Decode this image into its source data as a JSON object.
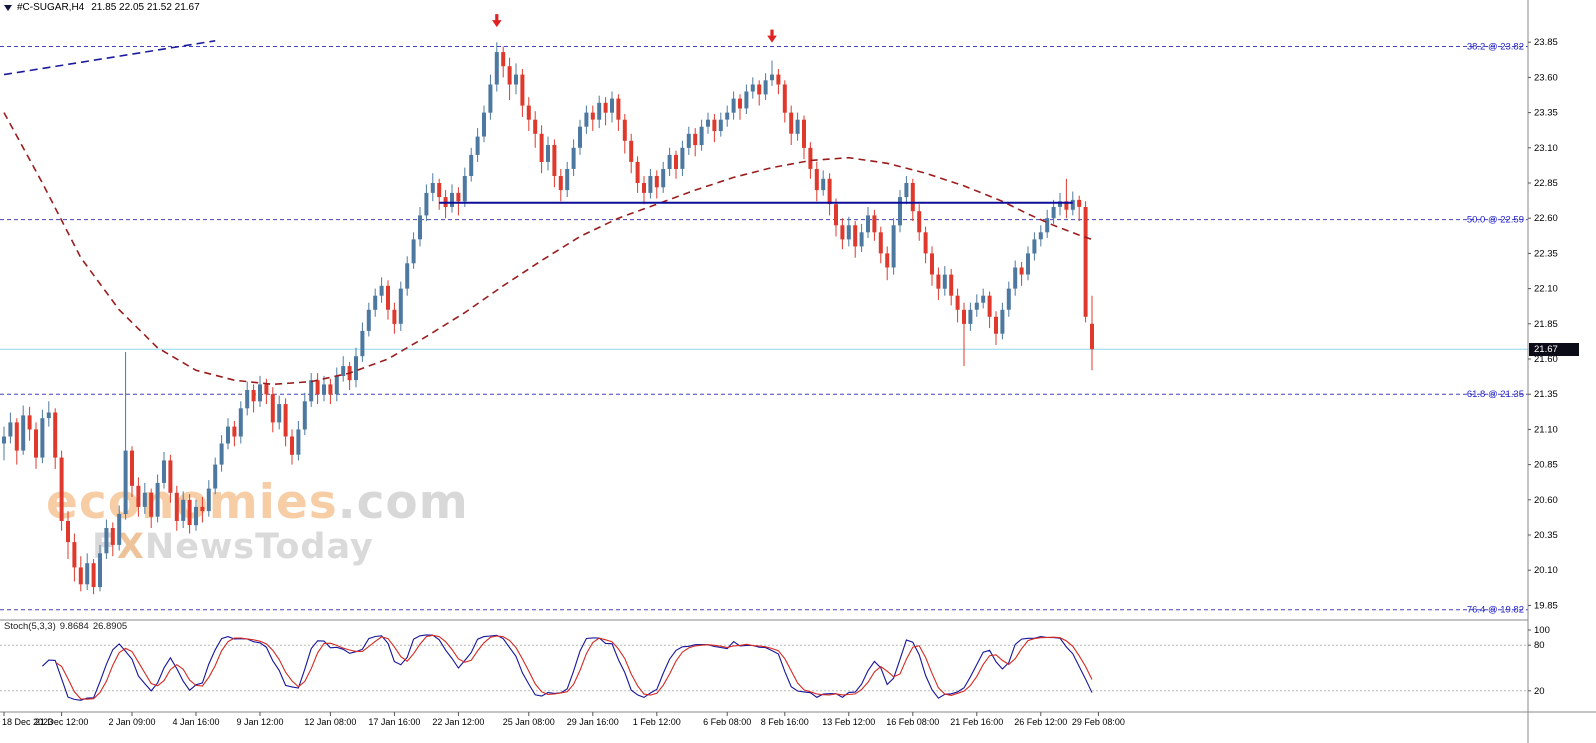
{
  "header": {
    "symbol": "#C-SUGAR,H4",
    "quote": "21.85 22.05 21.52 21.67"
  },
  "watermark": {
    "brand": "economies",
    "suffix": ".com",
    "f": "F",
    "x": "X",
    "rest": "NewsToday"
  },
  "price_axis": {
    "current": "21.67",
    "ticks": [
      "23.85",
      "23.60",
      "23.35",
      "23.10",
      "22.85",
      "22.60",
      "22.35",
      "22.10",
      "21.85",
      "21.60",
      "21.35",
      "21.10",
      "20.85",
      "20.60",
      "20.35",
      "20.10",
      "19.85"
    ]
  },
  "time_axis": {
    "labels": [
      {
        "text": "18 Dec 2023",
        "idx": 0
      },
      {
        "text": "21 Dec 12:00",
        "idx": 9
      },
      {
        "text": "2 Jan 09:00",
        "idx": 20
      },
      {
        "text": "4 Jan 16:00",
        "idx": 30
      },
      {
        "text": "9 Jan 12:00",
        "idx": 40
      },
      {
        "text": "12 Jan 08:00",
        "idx": 51
      },
      {
        "text": "17 Jan 16:00",
        "idx": 61
      },
      {
        "text": "22 Jan 12:00",
        "idx": 71
      },
      {
        "text": "25 Jan 08:00",
        "idx": 82
      },
      {
        "text": "29 Jan 16:00",
        "idx": 92
      },
      {
        "text": "1 Feb 12:00",
        "idx": 102
      },
      {
        "text": "6 Feb 08:00",
        "idx": 113
      },
      {
        "text": "8 Feb 16:00",
        "idx": 122
      },
      {
        "text": "13 Feb 12:00",
        "idx": 132
      },
      {
        "text": "16 Feb 08:00",
        "idx": 142
      },
      {
        "text": "21 Feb 16:00",
        "idx": 152
      },
      {
        "text": "26 Feb 12:00",
        "idx": 162
      },
      {
        "text": "29 Feb 08:00",
        "idx": 171
      }
    ]
  },
  "fib_levels": [
    {
      "label": "38.2 @ 23.82",
      "price": 23.82
    },
    {
      "label": "50.0 @ 22.59",
      "price": 22.59
    },
    {
      "label": "61.8 @ 21.35",
      "price": 21.35
    },
    {
      "label": "76.4 @ 19.82",
      "price": 19.82
    }
  ],
  "indicator": {
    "label": "Stoch(5,3,3)",
    "main_value": "9.8684",
    "signal_value": "26.8905",
    "levels": [
      "100",
      "80",
      "20"
    ],
    "params": {
      "k": 5,
      "d": 3,
      "slowing": 3
    }
  },
  "colors": {
    "up": "#4d79a1",
    "down": "#df382d",
    "ma": "#9b1c1c",
    "trend": "#1b1b9e",
    "hline": "#0d0d99",
    "fib": "#4444bb",
    "fib_text": "#2222cc",
    "price_line": "#8fd7ee",
    "arrow": "#e02222",
    "stoch_main": "#16169b",
    "stoch_signal": "#d42a22",
    "badge_bg": "#0c0c18",
    "axis": "#888888"
  },
  "chart_data": {
    "type": "candlestick",
    "symbol": "#C-SUGAR",
    "timeframe": "H4",
    "last_quote": {
      "open": 21.85,
      "high": 22.05,
      "low": 21.52,
      "close": 21.67
    },
    "ylim": [
      19.85,
      23.85
    ],
    "current_price": 21.67,
    "candles": [
      [
        21.0,
        21.12,
        20.88,
        21.05
      ],
      [
        21.05,
        21.22,
        21.0,
        21.15
      ],
      [
        21.15,
        21.18,
        20.85,
        20.95
      ],
      [
        20.95,
        21.27,
        20.92,
        21.2
      ],
      [
        21.2,
        21.26,
        21.02,
        21.1
      ],
      [
        21.1,
        21.15,
        20.82,
        20.9
      ],
      [
        20.9,
        21.24,
        20.86,
        21.18
      ],
      [
        21.18,
        21.3,
        21.12,
        21.22
      ],
      [
        21.22,
        21.25,
        20.82,
        20.9
      ],
      [
        20.9,
        20.95,
        20.38,
        20.45
      ],
      [
        20.45,
        20.52,
        20.18,
        20.3
      ],
      [
        20.3,
        20.36,
        20.02,
        20.12
      ],
      [
        20.12,
        20.2,
        19.95,
        20.0
      ],
      [
        20.0,
        20.22,
        19.96,
        20.15
      ],
      [
        20.15,
        20.18,
        19.93,
        19.98
      ],
      [
        19.98,
        20.28,
        19.95,
        20.22
      ],
      [
        20.22,
        20.46,
        20.18,
        20.4
      ],
      [
        20.4,
        20.44,
        20.2,
        20.28
      ],
      [
        20.28,
        20.56,
        20.24,
        20.5
      ],
      [
        20.5,
        21.65,
        20.46,
        20.95
      ],
      [
        20.95,
        20.98,
        20.62,
        20.7
      ],
      [
        20.7,
        20.76,
        20.48,
        20.55
      ],
      [
        20.55,
        20.72,
        20.5,
        20.65
      ],
      [
        20.65,
        20.68,
        20.4,
        20.48
      ],
      [
        20.48,
        20.78,
        20.44,
        20.72
      ],
      [
        20.72,
        20.94,
        20.68,
        20.88
      ],
      [
        20.88,
        20.92,
        20.58,
        20.65
      ],
      [
        20.65,
        20.7,
        20.38,
        20.45
      ],
      [
        20.45,
        20.66,
        20.4,
        20.6
      ],
      [
        20.6,
        20.64,
        20.36,
        20.42
      ],
      [
        20.42,
        20.6,
        20.38,
        20.55
      ],
      [
        20.55,
        20.62,
        20.44,
        20.52
      ],
      [
        20.52,
        20.74,
        20.48,
        20.68
      ],
      [
        20.68,
        20.9,
        20.64,
        20.85
      ],
      [
        20.85,
        21.06,
        20.8,
        21.0
      ],
      [
        21.0,
        21.18,
        20.96,
        21.12
      ],
      [
        21.12,
        21.16,
        20.98,
        21.05
      ],
      [
        21.05,
        21.3,
        21.0,
        21.25
      ],
      [
        21.25,
        21.44,
        21.2,
        21.38
      ],
      [
        21.38,
        21.42,
        21.22,
        21.3
      ],
      [
        21.3,
        21.48,
        21.26,
        21.42
      ],
      [
        21.42,
        21.46,
        21.28,
        21.35
      ],
      [
        21.35,
        21.4,
        21.08,
        21.15
      ],
      [
        21.15,
        21.34,
        21.1,
        21.28
      ],
      [
        21.28,
        21.32,
        20.98,
        21.05
      ],
      [
        21.05,
        21.1,
        20.85,
        20.92
      ],
      [
        20.92,
        21.16,
        20.88,
        21.1
      ],
      [
        21.1,
        21.36,
        21.06,
        21.3
      ],
      [
        21.3,
        21.5,
        21.26,
        21.45
      ],
      [
        21.45,
        21.5,
        21.28,
        21.35
      ],
      [
        21.35,
        21.48,
        21.3,
        21.42
      ],
      [
        21.42,
        21.46,
        21.28,
        21.35
      ],
      [
        21.35,
        21.54,
        21.3,
        21.48
      ],
      [
        21.48,
        21.62,
        21.44,
        21.55
      ],
      [
        21.55,
        21.58,
        21.38,
        21.45
      ],
      [
        21.45,
        21.68,
        21.4,
        21.62
      ],
      [
        21.62,
        21.86,
        21.58,
        21.8
      ],
      [
        21.8,
        22.0,
        21.76,
        21.95
      ],
      [
        21.95,
        22.1,
        21.9,
        22.05
      ],
      [
        22.05,
        22.18,
        22.0,
        22.12
      ],
      [
        22.12,
        22.16,
        21.88,
        21.95
      ],
      [
        21.95,
        22.0,
        21.78,
        21.85
      ],
      [
        21.85,
        22.15,
        21.8,
        22.1
      ],
      [
        22.1,
        22.33,
        22.05,
        22.28
      ],
      [
        22.28,
        22.5,
        22.24,
        22.45
      ],
      [
        22.45,
        22.68,
        22.4,
        22.62
      ],
      [
        22.62,
        22.84,
        22.58,
        22.78
      ],
      [
        22.78,
        22.92,
        22.72,
        22.85
      ],
      [
        22.85,
        22.88,
        22.66,
        22.75
      ],
      [
        22.75,
        22.8,
        22.6,
        22.68
      ],
      [
        22.68,
        22.84,
        22.64,
        22.78
      ],
      [
        22.78,
        22.82,
        22.62,
        22.72
      ],
      [
        22.72,
        22.96,
        22.68,
        22.9
      ],
      [
        22.9,
        23.1,
        22.86,
        23.05
      ],
      [
        23.05,
        23.24,
        23.0,
        23.18
      ],
      [
        23.18,
        23.4,
        23.14,
        23.35
      ],
      [
        23.35,
        23.62,
        23.3,
        23.55
      ],
      [
        23.55,
        23.85,
        23.5,
        23.78
      ],
      [
        23.78,
        23.82,
        23.6,
        23.68
      ],
      [
        23.68,
        23.74,
        23.44,
        23.55
      ],
      [
        23.55,
        23.7,
        23.48,
        23.62
      ],
      [
        23.62,
        23.66,
        23.32,
        23.4
      ],
      [
        23.4,
        23.46,
        23.22,
        23.3
      ],
      [
        23.3,
        23.36,
        23.1,
        23.2
      ],
      [
        23.2,
        23.26,
        22.92,
        23.0
      ],
      [
        23.0,
        23.18,
        22.94,
        23.12
      ],
      [
        23.12,
        23.16,
        22.82,
        22.9
      ],
      [
        22.9,
        22.95,
        22.72,
        22.8
      ],
      [
        22.8,
        23.0,
        22.75,
        22.95
      ],
      [
        22.95,
        23.16,
        22.9,
        23.1
      ],
      [
        23.1,
        23.3,
        23.05,
        23.25
      ],
      [
        23.25,
        23.4,
        23.2,
        23.35
      ],
      [
        23.35,
        23.4,
        23.22,
        23.3
      ],
      [
        23.3,
        23.47,
        23.24,
        23.42
      ],
      [
        23.42,
        23.46,
        23.26,
        23.35
      ],
      [
        23.35,
        23.5,
        23.28,
        23.45
      ],
      [
        23.45,
        23.48,
        23.22,
        23.3
      ],
      [
        23.3,
        23.34,
        23.06,
        23.15
      ],
      [
        23.15,
        23.2,
        22.92,
        23.0
      ],
      [
        23.0,
        23.04,
        22.78,
        22.85
      ],
      [
        22.85,
        22.9,
        22.7,
        22.78
      ],
      [
        22.78,
        22.95,
        22.74,
        22.9
      ],
      [
        22.9,
        22.94,
        22.74,
        22.82
      ],
      [
        22.82,
        23.0,
        22.78,
        22.95
      ],
      [
        22.95,
        23.1,
        22.9,
        23.05
      ],
      [
        23.05,
        23.08,
        22.88,
        22.95
      ],
      [
        22.95,
        23.15,
        22.9,
        23.1
      ],
      [
        23.1,
        23.25,
        23.05,
        23.2
      ],
      [
        23.2,
        23.24,
        23.04,
        23.12
      ],
      [
        23.12,
        23.3,
        23.08,
        23.25
      ],
      [
        23.25,
        23.35,
        23.2,
        23.3
      ],
      [
        23.3,
        23.34,
        23.14,
        23.22
      ],
      [
        23.22,
        23.35,
        23.18,
        23.3
      ],
      [
        23.3,
        23.4,
        23.25,
        23.35
      ],
      [
        23.35,
        23.5,
        23.3,
        23.45
      ],
      [
        23.45,
        23.48,
        23.3,
        23.38
      ],
      [
        23.38,
        23.55,
        23.34,
        23.5
      ],
      [
        23.5,
        23.6,
        23.45,
        23.55
      ],
      [
        23.55,
        23.58,
        23.4,
        23.48
      ],
      [
        23.48,
        23.63,
        23.44,
        23.58
      ],
      [
        23.58,
        23.72,
        23.54,
        23.62
      ],
      [
        23.62,
        23.66,
        23.48,
        23.55
      ],
      [
        23.55,
        23.58,
        23.28,
        23.35
      ],
      [
        23.35,
        23.4,
        23.12,
        23.2
      ],
      [
        23.2,
        23.35,
        23.15,
        23.3
      ],
      [
        23.3,
        23.33,
        23.02,
        23.1
      ],
      [
        23.1,
        23.14,
        22.88,
        22.95
      ],
      [
        22.95,
        23.0,
        22.72,
        22.8
      ],
      [
        22.8,
        22.94,
        22.76,
        22.88
      ],
      [
        22.88,
        22.92,
        22.62,
        22.7
      ],
      [
        22.7,
        22.74,
        22.47,
        22.55
      ],
      [
        22.55,
        22.6,
        22.38,
        22.45
      ],
      [
        22.45,
        22.61,
        22.4,
        22.55
      ],
      [
        22.55,
        22.58,
        22.32,
        22.4
      ],
      [
        22.4,
        22.56,
        22.36,
        22.5
      ],
      [
        22.5,
        22.68,
        22.46,
        22.62
      ],
      [
        22.62,
        22.66,
        22.44,
        22.5
      ],
      [
        22.5,
        22.54,
        22.28,
        22.35
      ],
      [
        22.35,
        22.4,
        22.16,
        22.25
      ],
      [
        22.25,
        22.6,
        22.2,
        22.55
      ],
      [
        22.55,
        22.8,
        22.5,
        22.75
      ],
      [
        22.75,
        22.9,
        22.7,
        22.85
      ],
      [
        22.85,
        22.88,
        22.58,
        22.65
      ],
      [
        22.65,
        22.7,
        22.44,
        22.5
      ],
      [
        22.5,
        22.54,
        22.28,
        22.35
      ],
      [
        22.35,
        22.4,
        22.12,
        22.2
      ],
      [
        22.2,
        22.25,
        22.02,
        22.1
      ],
      [
        22.1,
        22.26,
        22.05,
        22.2
      ],
      [
        22.2,
        22.24,
        21.98,
        22.05
      ],
      [
        22.05,
        22.1,
        21.86,
        21.95
      ],
      [
        21.95,
        22.0,
        21.55,
        21.85
      ],
      [
        21.85,
        22.0,
        21.8,
        21.95
      ],
      [
        21.95,
        22.06,
        21.9,
        22.0
      ],
      [
        22.0,
        22.1,
        21.96,
        22.05
      ],
      [
        22.05,
        22.08,
        21.82,
        21.9
      ],
      [
        21.9,
        21.94,
        21.7,
        21.78
      ],
      [
        21.78,
        22.0,
        21.74,
        21.95
      ],
      [
        21.95,
        22.15,
        21.9,
        22.1
      ],
      [
        22.1,
        22.3,
        22.05,
        22.25
      ],
      [
        22.25,
        22.29,
        22.12,
        22.2
      ],
      [
        22.2,
        22.4,
        22.16,
        22.35
      ],
      [
        22.35,
        22.5,
        22.3,
        22.45
      ],
      [
        22.45,
        22.55,
        22.4,
        22.5
      ],
      [
        22.5,
        22.66,
        22.46,
        22.6
      ],
      [
        22.6,
        22.73,
        22.56,
        22.68
      ],
      [
        22.68,
        22.78,
        22.62,
        22.72
      ],
      [
        22.72,
        22.88,
        22.6,
        22.66
      ],
      [
        22.66,
        22.79,
        22.62,
        22.73
      ],
      [
        22.73,
        22.76,
        22.58,
        22.68
      ],
      [
        22.68,
        22.72,
        21.86,
        21.9
      ],
      [
        21.85,
        22.05,
        21.52,
        21.67
      ]
    ],
    "ma_line": {
      "style": "dashed",
      "points": [
        [
          0,
          23.35
        ],
        [
          6,
          22.85
        ],
        [
          12,
          22.32
        ],
        [
          18,
          21.95
        ],
        [
          24,
          21.68
        ],
        [
          30,
          21.52
        ],
        [
          36,
          21.45
        ],
        [
          42,
          21.42
        ],
        [
          48,
          21.44
        ],
        [
          54,
          21.5
        ],
        [
          60,
          21.6
        ],
        [
          66,
          21.76
        ],
        [
          72,
          21.93
        ],
        [
          78,
          22.12
        ],
        [
          84,
          22.3
        ],
        [
          90,
          22.47
        ],
        [
          96,
          22.6
        ],
        [
          102,
          22.7
        ],
        [
          108,
          22.8
        ],
        [
          114,
          22.89
        ],
        [
          120,
          22.96
        ],
        [
          126,
          23.01
        ],
        [
          132,
          23.03
        ],
        [
          138,
          22.99
        ],
        [
          144,
          22.92
        ],
        [
          150,
          22.83
        ],
        [
          156,
          22.72
        ],
        [
          160,
          22.63
        ],
        [
          164,
          22.55
        ],
        [
          168,
          22.48
        ],
        [
          170,
          22.45
        ]
      ]
    },
    "trendline": {
      "from": [
        0,
        23.62
      ],
      "to": [
        33,
        23.86
      ]
    },
    "hline": {
      "price": 22.71,
      "from_idx": 68,
      "to_idx": 167
    },
    "arrows_down": [
      {
        "idx": 77,
        "price": 24.05
      },
      {
        "idx": 120,
        "price": 23.94
      }
    ]
  }
}
